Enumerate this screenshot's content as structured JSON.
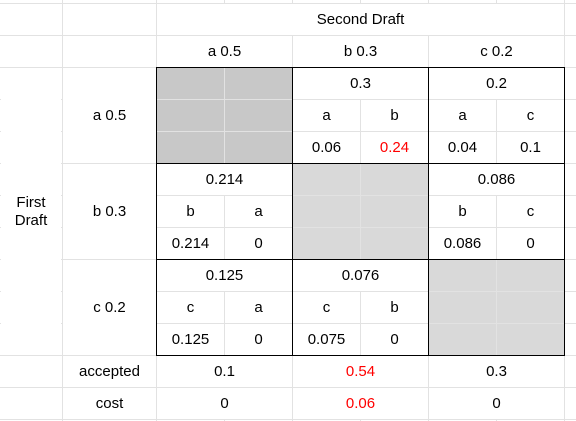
{
  "table": {
    "header": "Second Draft",
    "row_group_label": "First Draft",
    "columns": [
      "a 0.5",
      "b 0.3",
      "c 0.2"
    ],
    "rows": [
      {
        "label": "a 0.5",
        "blocks": [
          {
            "total": 0.3,
            "tokens": [
              "a",
              "b"
            ],
            "values": [
              0.06,
              0.24
            ]
          },
          {
            "total": 0.2,
            "tokens": [
              "a",
              "c"
            ],
            "values": [
              0.04,
              0.1
            ]
          }
        ]
      },
      {
        "label": "b 0.3",
        "blocks": [
          {
            "total": 0.214,
            "tokens": [
              "b",
              "a"
            ],
            "values": [
              0.214,
              0
            ]
          },
          {
            "total": 0.086,
            "tokens": [
              "b",
              "c"
            ],
            "values": [
              0.086,
              0
            ]
          }
        ]
      },
      {
        "label": "c 0.2",
        "blocks": [
          {
            "total": 0.125,
            "tokens": [
              "c",
              "a"
            ],
            "values": [
              0.125,
              0
            ]
          },
          {
            "total": 0.076,
            "tokens": [
              "c",
              "b"
            ],
            "values": [
              0.075,
              0
            ]
          }
        ]
      }
    ],
    "summary": [
      {
        "label": "accepted",
        "values": [
          0.1,
          0.54,
          0.3
        ]
      },
      {
        "label": "cost",
        "values": [
          0,
          0.06,
          0
        ]
      }
    ]
  }
}
